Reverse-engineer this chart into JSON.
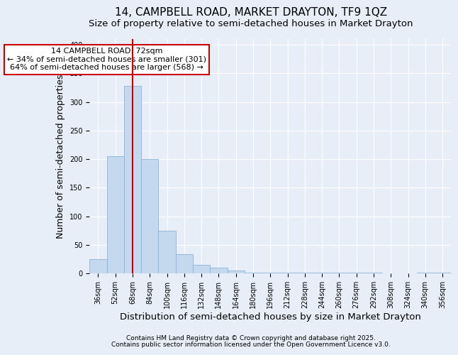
{
  "title1": "14, CAMPBELL ROAD, MARKET DRAYTON, TF9 1QZ",
  "title2": "Size of property relative to semi-detached houses in Market Drayton",
  "xlabel": "Distribution of semi-detached houses by size in Market Drayton",
  "ylabel": "Number of semi-detached properties",
  "categories": [
    "36sqm",
    "52sqm",
    "68sqm",
    "84sqm",
    "100sqm",
    "116sqm",
    "132sqm",
    "148sqm",
    "164sqm",
    "180sqm",
    "196sqm",
    "212sqm",
    "228sqm",
    "244sqm",
    "260sqm",
    "276sqm",
    "292sqm",
    "308sqm",
    "324sqm",
    "340sqm",
    "356sqm"
  ],
  "values": [
    25,
    205,
    328,
    200,
    75,
    33,
    15,
    10,
    5,
    1,
    1,
    1,
    1,
    1,
    1,
    1,
    1,
    0,
    0,
    1,
    1
  ],
  "bar_color": "#c5d9ee",
  "bar_edge_color": "#8ab4d8",
  "vline_x": 2,
  "vline_color": "#cc0000",
  "annotation_text": "14 CAMPBELL ROAD: 72sqm\n← 34% of semi-detached houses are smaller (301)\n64% of semi-detached houses are larger (568) →",
  "annotation_box_color": "#ffffff",
  "annotation_box_edge": "#cc0000",
  "ylim": [
    0,
    410
  ],
  "yticks": [
    0,
    50,
    100,
    150,
    200,
    250,
    300,
    350,
    400
  ],
  "bg_color": "#e8eef8",
  "footer1": "Contains HM Land Registry data © Crown copyright and database right 2025.",
  "footer2": "Contains public sector information licensed under the Open Government Licence v3.0.",
  "title1_fontsize": 11,
  "title2_fontsize": 9.5,
  "ylabel_fontsize": 9,
  "xlabel_fontsize": 9.5,
  "tick_fontsize": 7,
  "annot_fontsize": 8,
  "footer_fontsize": 6.5
}
